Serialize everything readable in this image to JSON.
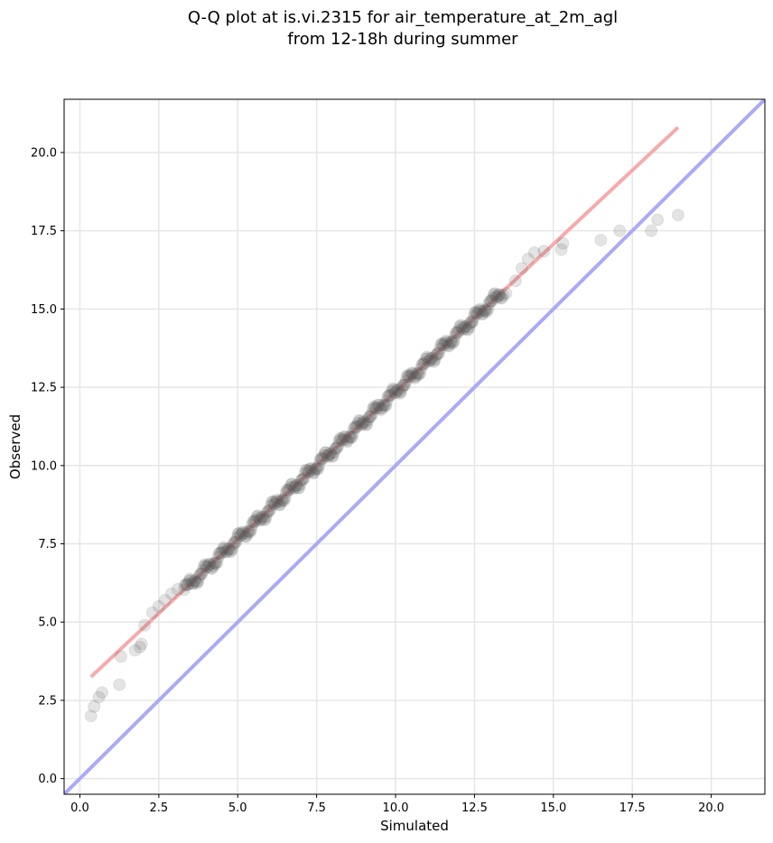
{
  "chart_data": {
    "type": "scatter",
    "title_line1": "Q-Q plot at is.vi.2315 for air_temperature_at_2m_agl",
    "title_line2": "from 12-18h during summer",
    "xlabel": "Simulated",
    "ylabel": "Observed",
    "xlim": [
      -0.5,
      21.7
    ],
    "ylim": [
      -0.5,
      21.7
    ],
    "xticks": [
      "0.0",
      "2.5",
      "5.0",
      "7.5",
      "10.0",
      "12.5",
      "15.0",
      "17.5",
      "20.0"
    ],
    "yticks": [
      "0.0",
      "2.5",
      "5.0",
      "7.5",
      "10.0",
      "12.5",
      "15.0",
      "17.5",
      "20.0"
    ],
    "grid": true,
    "identity_line": {
      "color": "#aaaaf7",
      "from": [
        -0.5,
        -0.5
      ],
      "to": [
        21.7,
        21.7
      ]
    },
    "fit_line": {
      "color": "#f7aaaa",
      "from": [
        0.35,
        3.25
      ],
      "to": [
        18.95,
        20.8
      ]
    },
    "point_color": "#555555",
    "points_sparse": [
      [
        0.35,
        2.0
      ],
      [
        0.45,
        2.3
      ],
      [
        0.6,
        2.6
      ],
      [
        0.7,
        2.75
      ],
      [
        1.25,
        3.0
      ],
      [
        1.3,
        3.9
      ],
      [
        1.75,
        4.1
      ],
      [
        1.9,
        4.2
      ],
      [
        1.95,
        4.3
      ],
      [
        2.05,
        4.9
      ],
      [
        2.3,
        5.3
      ],
      [
        2.5,
        5.5
      ],
      [
        2.7,
        5.7
      ],
      [
        2.9,
        5.9
      ],
      [
        3.1,
        6.05
      ],
      [
        13.5,
        15.5
      ],
      [
        13.8,
        15.9
      ],
      [
        14.0,
        16.3
      ],
      [
        14.2,
        16.6
      ],
      [
        14.4,
        16.8
      ],
      [
        14.7,
        16.85
      ],
      [
        15.25,
        16.9
      ],
      [
        15.3,
        17.1
      ],
      [
        16.5,
        17.2
      ],
      [
        17.1,
        17.5
      ],
      [
        18.1,
        17.5
      ],
      [
        18.3,
        17.85
      ],
      [
        18.95,
        18.0
      ]
    ],
    "points_dense_range": [
      3.3,
      13.4
    ],
    "points_dense_count": 320
  }
}
